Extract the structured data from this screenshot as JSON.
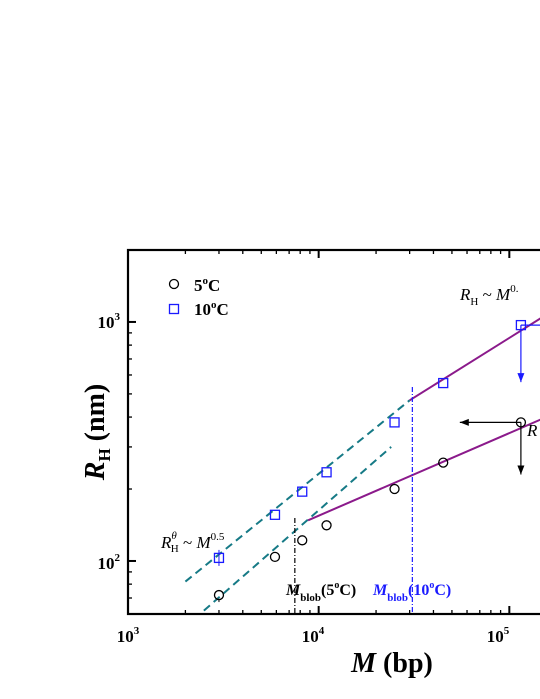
{
  "chart_data": {
    "type": "scatter",
    "x_scale": "log",
    "y_scale": "log",
    "xlim": [
      1000,
      180000
    ],
    "ylim": [
      60,
      2000
    ],
    "x_ticks": [
      {
        "value": 1000,
        "base": "10",
        "exp": "3"
      },
      {
        "value": 10000,
        "base": "10",
        "exp": "4"
      },
      {
        "value": 100000,
        "base": "10",
        "exp": "5"
      }
    ],
    "y_ticks": [
      {
        "value": 100,
        "base": "10",
        "exp": "2"
      },
      {
        "value": 1000,
        "base": "10",
        "exp": "3"
      }
    ],
    "xlabel": {
      "italic": "M",
      "rest": " (bp)"
    },
    "ylabel": {
      "italic": "R",
      "sub": "H",
      "rest": " (nm)"
    },
    "legend": {
      "placement": "top-left",
      "entries": [
        {
          "base": "5",
          "sup": "o",
          "tail": "C",
          "marker": "circle",
          "color": "#000000"
        },
        {
          "base": "10",
          "sup": "o",
          "tail": "C",
          "marker": "square",
          "color": "#1a1aff"
        }
      ]
    },
    "series": [
      {
        "marker": "circle",
        "color": "#000000",
        "x": [
          3000,
          5900,
          8200,
          11000,
          25000,
          45000,
          115000
        ],
        "y": [
          72,
          104,
          122,
          141,
          200,
          258,
          380
        ]
      },
      {
        "marker": "square",
        "color": "#1a1aff",
        "x": [
          3000,
          5900,
          8200,
          11000,
          25000,
          45000,
          115000
        ],
        "y": [
          103,
          156,
          195,
          235,
          380,
          555,
          970
        ]
      }
    ],
    "fit_lines": [
      {
        "color": "#167a86",
        "dash": true,
        "from": [
          2000,
          82
        ],
        "to": [
          30000,
          470
        ]
      },
      {
        "color": "#167a86",
        "dash": true,
        "from": [
          2500,
          62
        ],
        "to": [
          24000,
          300
        ]
      },
      {
        "color": "#8b1a8b",
        "dash": false,
        "from": [
          30000,
          470
        ],
        "to": [
          180000,
          1150
        ]
      },
      {
        "color": "#8b1a8b",
        "dash": false,
        "from": [
          8800,
          148
        ],
        "to": [
          180000,
          420
        ]
      }
    ],
    "vlines": [
      {
        "x": 7500,
        "color": "#000000",
        "label": {
          "italic": "M",
          "sub": "blob",
          "rest": "(5",
          "sup": "o",
          "tail": "C)",
          "color": "#000000"
        }
      },
      {
        "x": 31000,
        "color": "#1a1aff",
        "label": {
          "italic": "M",
          "sub": "blob",
          "rest": "(10",
          "sup": "o",
          "tail": "C)",
          "color": "#1a1aff"
        }
      }
    ],
    "annotations": [
      {
        "id": "theta",
        "italic": "R",
        "sup": "θ",
        "sub": "H",
        "rest": " ~ ",
        "italic2": "M",
        "exp": "0.5"
      },
      {
        "id": "upper",
        "italic": "R",
        "sub": "H",
        "rest": " ~ ",
        "italic2": "M",
        "exp": "0."
      },
      {
        "id": "lower",
        "italic": "R"
      }
    ],
    "arrows": [
      {
        "from": [
          115000,
          970
        ],
        "to": [
          115000,
          560
        ],
        "color": "#1a1aff"
      },
      {
        "from": [
          115000,
          970
        ],
        "to": [
          180000,
          970
        ],
        "color": "#1a1aff",
        "head": false
      },
      {
        "from": [
          115000,
          380
        ],
        "to": [
          55000,
          380
        ],
        "color": "#000000"
      },
      {
        "from": [
          115000,
          380
        ],
        "to": [
          115000,
          230
        ],
        "color": "#000000"
      }
    ]
  }
}
